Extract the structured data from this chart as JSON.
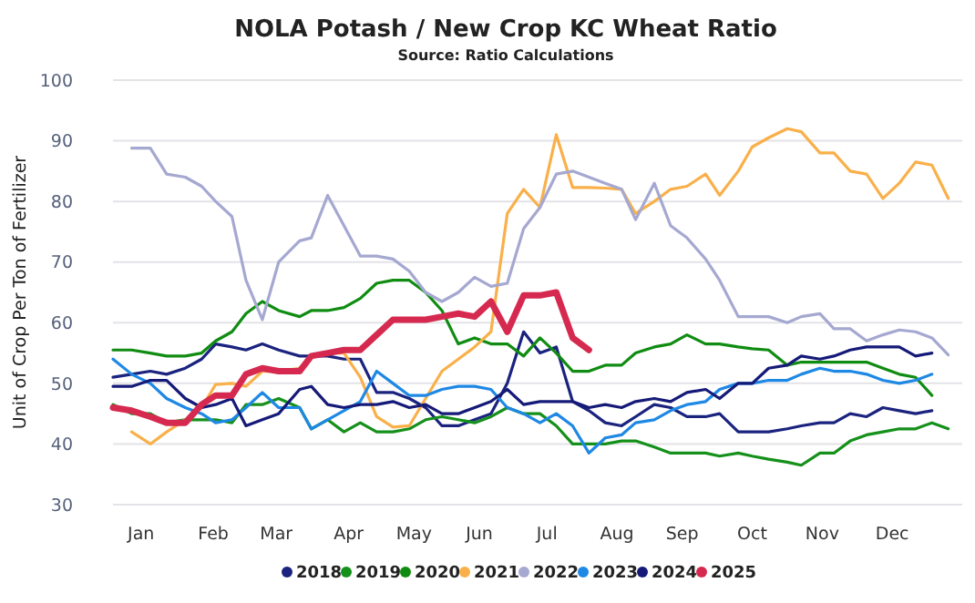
{
  "chart_data": {
    "type": "line",
    "title": "NOLA Potash / New Crop KC Wheat Ratio",
    "subtitle": "Source: Ratio Calculations",
    "ylabel": "Unit of Crop Per Ton of Fertilizer",
    "x": [
      "--01-01",
      "--01-09",
      "--01-17",
      "--01-24",
      "--02-01",
      "--02-08",
      "--02-14",
      "--02-21",
      "--02-27",
      "--03-06",
      "--03-13",
      "--03-22",
      "--03-27",
      "--04-03",
      "--04-10",
      "--04-17",
      "--04-24",
      "--05-01",
      "--05-08",
      "--05-15",
      "--05-22",
      "--05-29",
      "--06-05",
      "--06-12",
      "--06-19",
      "--06-26",
      "--07-03",
      "--07-10",
      "--07-17",
      "--07-24",
      "--07-31",
      "--08-07",
      "--08-13",
      "--08-21",
      "--08-28",
      "--09-04",
      "--09-12",
      "--09-18",
      "--09-26",
      "--10-02",
      "--10-09",
      "--10-17",
      "--10-23",
      "--10-31",
      "--11-06",
      "--11-13",
      "--11-20",
      "--11-27",
      "--12-04",
      "--12-11",
      "--12-18",
      "--12-25"
    ],
    "xlim": [
      "--01-01",
      "--12-31"
    ],
    "xticks": [
      {
        "value": "--01-13",
        "label": "Jan"
      },
      {
        "value": "--02-13",
        "label": "Feb"
      },
      {
        "value": "--03-12",
        "label": "Mar"
      },
      {
        "value": "--04-12",
        "label": "Apr"
      },
      {
        "value": "--05-10",
        "label": "May"
      },
      {
        "value": "--06-07",
        "label": "Jun"
      },
      {
        "value": "--07-06",
        "label": "Jul"
      },
      {
        "value": "--08-05",
        "label": "Aug"
      },
      {
        "value": "--09-02",
        "label": "Sep"
      },
      {
        "value": "--10-02",
        "label": "Oct"
      },
      {
        "value": "--11-01",
        "label": "Nov"
      },
      {
        "value": "--12-01",
        "label": "Dec"
      }
    ],
    "ylim": [
      30,
      100
    ],
    "yticks": [
      30,
      40,
      50,
      60,
      70,
      80,
      90,
      100
    ],
    "grid": "y",
    "legend": "bottom",
    "marker": "none",
    "line_style": "solid",
    "series": [
      {
        "name": "2018",
        "color": "#1a237e",
        "values": [
          51,
          51.5,
          52,
          51.5,
          52.5,
          54,
          56.5,
          56,
          55.5,
          56.5,
          55.5,
          54.5,
          54.5,
          54.5,
          54,
          54,
          48.5,
          48.5,
          47.5,
          46,
          43,
          43,
          44,
          45,
          50,
          58.5,
          55,
          56,
          47,
          45.5,
          43.5,
          43,
          44.5,
          46.5,
          46,
          44.5,
          44.5,
          45,
          42,
          42,
          42,
          42.5,
          43,
          43.5,
          43.5,
          45,
          44.5,
          46,
          45.5,
          45,
          45.5,
          null
        ]
      },
      {
        "name": "2019",
        "color": "#15901a",
        "values": [
          46.5,
          45,
          45,
          43.5,
          44,
          44,
          44,
          43.5,
          46.5,
          46.5,
          47.5,
          46,
          42.5,
          44,
          42,
          43.5,
          42,
          42,
          42.5,
          44,
          44.5,
          44,
          43.5,
          44.5,
          46,
          45,
          45,
          43,
          40,
          40,
          40,
          40.5,
          40.5,
          39.5,
          38.5,
          38.5,
          38.5,
          38,
          38.5,
          38,
          37.5,
          37,
          36.5,
          38.5,
          38.5,
          40.5,
          41.5,
          42,
          42.5,
          42.5,
          43.5,
          42.5
        ]
      },
      {
        "name": "2020",
        "color": "#108c12",
        "values": [
          55.5,
          55.5,
          55,
          54.5,
          54.5,
          55,
          57,
          58.5,
          61.5,
          63.5,
          62,
          61,
          62,
          62,
          62.5,
          64,
          66.5,
          67,
          67,
          65,
          62,
          56.5,
          57.5,
          56.5,
          56.5,
          54.5,
          57.5,
          55,
          52,
          52,
          53,
          53,
          55,
          56,
          56.5,
          58,
          56.5,
          56.5,
          56,
          55.7,
          55.5,
          53,
          53.5,
          53.5,
          53.5,
          53.5,
          53.5,
          52.5,
          51.5,
          51,
          48,
          null
        ]
      },
      {
        "name": "2021",
        "color": "#f9b04a",
        "values": [
          null,
          42,
          40,
          42,
          44,
          46,
          49.8,
          50,
          49.5,
          52,
          52,
          52.5,
          54.5,
          55,
          55,
          51,
          44.5,
          42.8,
          43,
          47.5,
          52,
          54,
          56,
          58.5,
          78,
          82,
          79,
          91,
          82.3,
          82.3,
          82.2,
          82,
          78,
          80,
          82,
          82.5,
          84.5,
          81,
          85,
          89,
          90.5,
          92,
          91.5,
          88,
          88,
          85,
          84.5,
          80.5,
          83,
          86.5,
          86,
          80.5
        ]
      },
      {
        "name": "2022",
        "color": "#a5a8d0",
        "values": [
          null,
          88.8,
          88.8,
          84.5,
          84,
          82.5,
          80,
          77.5,
          67,
          60.5,
          70,
          73.5,
          74,
          81,
          76,
          71,
          71,
          70.5,
          68.5,
          65,
          63.5,
          65,
          67.5,
          66,
          66.5,
          75.5,
          79,
          84.5,
          85,
          84,
          83,
          82,
          77,
          83,
          76,
          74,
          70.5,
          67,
          61,
          61,
          61,
          60,
          61,
          61.5,
          59,
          59,
          57,
          58,
          58.8,
          58.5,
          57.5,
          54.7
        ]
      },
      {
        "name": "2023",
        "color": "#1e88e5",
        "values": [
          54,
          51.5,
          50,
          47.5,
          46,
          45,
          43.5,
          44,
          46,
          48.5,
          46,
          46,
          42.5,
          44,
          45.5,
          47,
          52,
          50,
          48,
          48,
          49,
          49.5,
          49.5,
          49,
          46,
          45,
          43.5,
          45,
          43,
          38.5,
          41,
          41.5,
          43.5,
          44,
          45.5,
          46.5,
          47,
          49,
          50,
          50,
          50.5,
          50.5,
          51.5,
          52.5,
          52,
          52,
          51.5,
          50.5,
          50,
          50.5,
          51.5,
          null
        ]
      },
      {
        "name": "2024",
        "color": "#151a78",
        "values": [
          49.5,
          49.5,
          50.5,
          50.5,
          47.5,
          46,
          46.5,
          47.5,
          43,
          44,
          45,
          49,
          49.5,
          46.5,
          46,
          46.5,
          46.5,
          47,
          46,
          46.5,
          45,
          45,
          46,
          47,
          49,
          46.5,
          47,
          47,
          47,
          46,
          46.5,
          46,
          47,
          47.5,
          47,
          48.5,
          49,
          47.5,
          50,
          50,
          52.5,
          53,
          54.5,
          54,
          54.5,
          55.5,
          56,
          56,
          56,
          54.5,
          55,
          null
        ]
      },
      {
        "name": "2025",
        "color": "#d6294f",
        "values": [
          46,
          45.5,
          44.5,
          43.5,
          43.5,
          46.5,
          48,
          48,
          51.5,
          52.5,
          52,
          52,
          54.5,
          55,
          55.5,
          55.5,
          58,
          60.5,
          60.5,
          60.5,
          61,
          61.5,
          61,
          63.5,
          58.5,
          64.5,
          64.5,
          65,
          57.5,
          55.5,
          null,
          null,
          null,
          null,
          null,
          null,
          null,
          null,
          null,
          null,
          null,
          null,
          null,
          null,
          null,
          null,
          null,
          null,
          null,
          null,
          null,
          null
        ]
      }
    ]
  }
}
